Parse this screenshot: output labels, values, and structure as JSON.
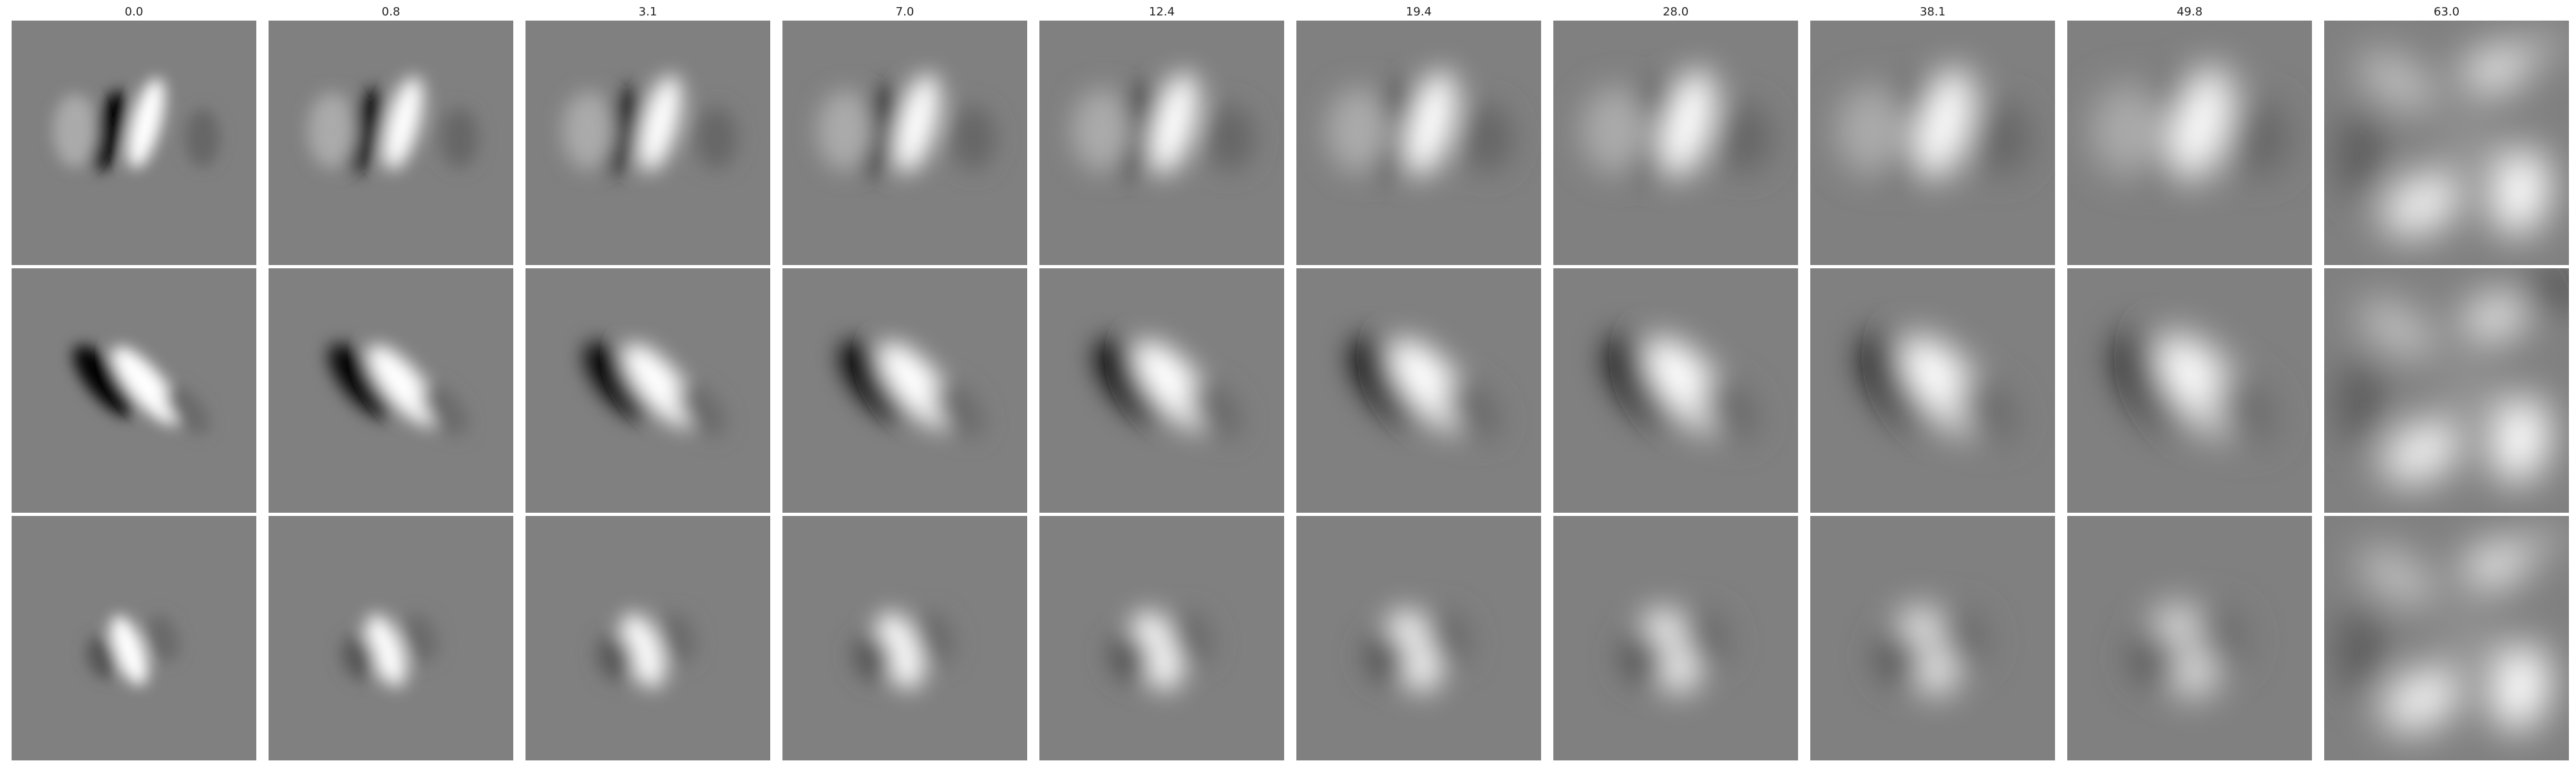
{
  "figure": {
    "columns": [
      "0.0",
      "0.8",
      "3.1",
      "7.0",
      "12.4",
      "19.4",
      "28.0",
      "38.1",
      "49.8",
      "63.0"
    ],
    "rows": 3,
    "colormap": "gray",
    "background_gray": "#808080"
  }
}
